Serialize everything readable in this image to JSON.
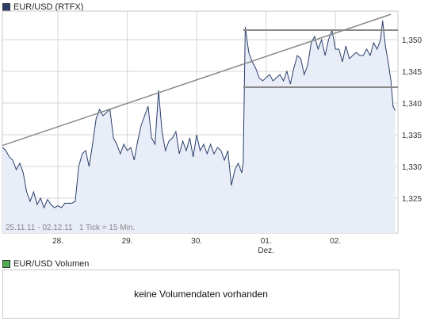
{
  "legend_price": {
    "label": "EUR/USD (RTFX)",
    "color": "#2b3f6a"
  },
  "legend_volume": {
    "label": "EUR/USD Volumen",
    "color": "#4caf50"
  },
  "volume_message": "keine Volumendaten vorhanden",
  "info_text": "25.11.11 - 02.12.11   1 Tick = 15 Min.",
  "colors": {
    "line": "#2b3f6a",
    "fill": "#e8edf8",
    "trend": "#8a8a8a",
    "grid": "#d6d6d6"
  },
  "chart_data": {
    "type": "area",
    "title": "EUR/USD (RTFX)",
    "xlabel": "",
    "ylabel": "",
    "xlim": [
      0,
      5.7
    ],
    "ylim": [
      1.3195,
      1.3545
    ],
    "y_ticks": [
      1.325,
      1.33,
      1.335,
      1.34,
      1.345,
      1.35
    ],
    "y_tick_labels": [
      "1,325",
      "1,330",
      "1,335",
      "1,340",
      "1,345",
      "1,350"
    ],
    "x_ticks": [
      {
        "x": 0.8,
        "label": "28."
      },
      {
        "x": 1.8,
        "label": "29."
      },
      {
        "x": 2.8,
        "label": "30."
      },
      {
        "x": 3.8,
        "label": "01.",
        "sublabel": "Dez."
      },
      {
        "x": 4.8,
        "label": "02."
      }
    ],
    "grid": true,
    "series": [
      {
        "x": [
          0.0,
          0.05,
          0.1,
          0.15,
          0.2,
          0.25,
          0.3,
          0.35,
          0.4,
          0.45,
          0.5,
          0.55,
          0.6,
          0.65,
          0.7,
          0.75,
          0.8,
          0.85,
          0.9,
          0.95,
          1.0,
          1.05,
          1.1,
          1.15,
          1.2,
          1.25,
          1.3,
          1.35,
          1.4,
          1.45,
          1.5,
          1.55,
          1.6,
          1.65,
          1.7,
          1.75,
          1.8,
          1.85,
          1.9,
          1.95,
          2.0,
          2.05,
          2.1,
          2.15,
          2.2,
          2.25,
          2.3,
          2.35,
          2.4,
          2.45,
          2.5,
          2.55,
          2.6,
          2.65,
          2.7,
          2.75,
          2.8,
          2.85,
          2.9,
          2.95,
          3.0,
          3.05,
          3.1,
          3.15,
          3.2,
          3.25,
          3.3,
          3.35,
          3.4,
          3.45,
          3.47,
          3.5,
          3.55,
          3.6,
          3.65,
          3.7,
          3.75,
          3.8,
          3.85,
          3.9,
          3.95,
          4.0,
          4.05,
          4.1,
          4.15,
          4.2,
          4.25,
          4.3,
          4.35,
          4.4,
          4.45,
          4.5,
          4.55,
          4.6,
          4.65,
          4.7,
          4.75,
          4.8,
          4.85,
          4.9,
          4.95,
          5.0,
          5.05,
          5.1,
          5.15,
          5.2,
          5.25,
          5.3,
          5.35,
          5.4,
          5.45,
          5.48,
          5.52,
          5.56,
          5.6,
          5.63,
          5.66
        ],
        "y": [
          1.333,
          1.3325,
          1.3315,
          1.331,
          1.3295,
          1.3305,
          1.329,
          1.326,
          1.3245,
          1.326,
          1.324,
          1.325,
          1.3235,
          1.3248,
          1.324,
          1.3235,
          1.3238,
          1.3235,
          1.3242,
          1.3242,
          1.3242,
          1.3245,
          1.33,
          1.332,
          1.3325,
          1.33,
          1.3335,
          1.3375,
          1.339,
          1.338,
          1.3385,
          1.339,
          1.3345,
          1.3335,
          1.332,
          1.3335,
          1.3325,
          1.333,
          1.331,
          1.334,
          1.3365,
          1.338,
          1.3395,
          1.3345,
          1.3335,
          1.342,
          1.3355,
          1.3325,
          1.334,
          1.3345,
          1.3355,
          1.332,
          1.334,
          1.3325,
          1.3345,
          1.3315,
          1.335,
          1.3325,
          1.3335,
          1.332,
          1.3335,
          1.332,
          1.333,
          1.3325,
          1.331,
          1.3325,
          1.327,
          1.3295,
          1.3305,
          1.329,
          1.3305,
          1.352,
          1.348,
          1.3465,
          1.3455,
          1.344,
          1.3435,
          1.344,
          1.3445,
          1.3435,
          1.344,
          1.3445,
          1.3435,
          1.345,
          1.343,
          1.3455,
          1.3475,
          1.347,
          1.3445,
          1.346,
          1.3495,
          1.3505,
          1.3485,
          1.35,
          1.3475,
          1.35,
          1.3515,
          1.3485,
          1.3485,
          1.3465,
          1.349,
          1.347,
          1.3475,
          1.348,
          1.3475,
          1.3475,
          1.3485,
          1.3475,
          1.3495,
          1.3485,
          1.35,
          1.353,
          1.349,
          1.3465,
          1.3435,
          1.3395,
          1.3388
        ]
      }
    ],
    "annotations": [
      {
        "type": "trendline",
        "x1": 0.0,
        "y1": 1.3333,
        "x2": 5.6,
        "y2": 1.354
      },
      {
        "type": "hline",
        "x1": 3.47,
        "x2": 5.7,
        "y": 1.3515
      },
      {
        "type": "hline",
        "x1": 3.47,
        "x2": 5.7,
        "y": 1.3425
      }
    ]
  }
}
